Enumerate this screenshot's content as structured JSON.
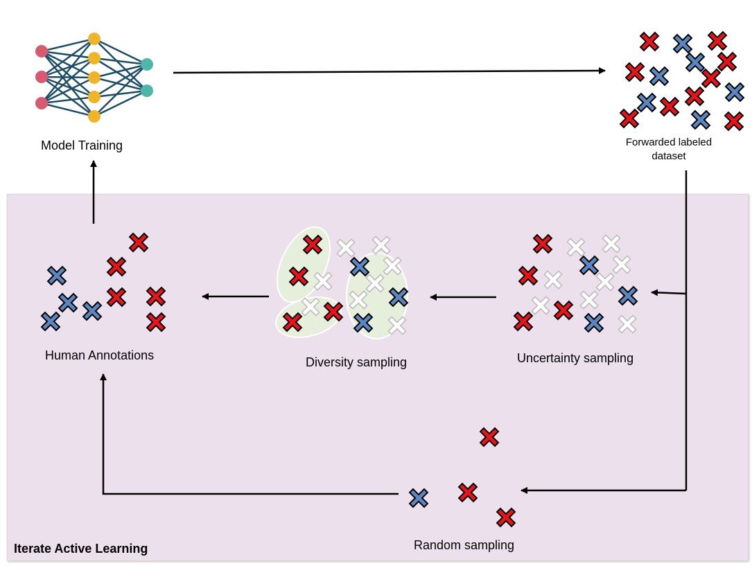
{
  "labels": {
    "model_training": "Model Training",
    "forwarded_line1": "Forwarded labeled",
    "forwarded_line2": "dataset",
    "human_annotations": "Human Annotations",
    "diversity_sampling": "Diversity sampling",
    "uncertainty_sampling": "Uncertainty sampling",
    "random_sampling": "Random sampling",
    "iterate_active_learning": "Iterate Active Learning"
  },
  "colors": {
    "panel_bg": "#ede0ed",
    "red_marker": "#e8141b",
    "blue_marker": "#5b86c0",
    "white_marker": "#ffffff",
    "cluster_fill": "#e6eedc",
    "input_node": "#d95a6e",
    "hidden_node": "#f0b429",
    "output_node": "#4fb7a8",
    "edge": "#1d4d66"
  },
  "icons": {
    "neural_network": "neural-network-icon",
    "marker": "x-cross-icon"
  }
}
